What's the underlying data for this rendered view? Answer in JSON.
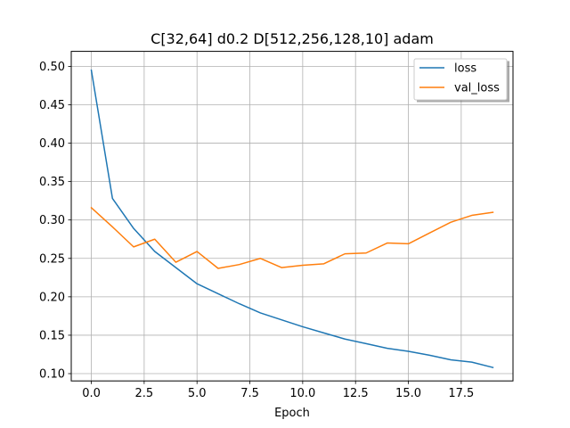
{
  "chart_data": {
    "type": "line",
    "title": "C[32,64] d0.2 D[512,256,128,10] adam",
    "xlabel": "Epoch",
    "ylabel": "",
    "xlim": [
      -0.95,
      19.95
    ],
    "ylim": [
      0.0905,
      0.5195
    ],
    "grid": true,
    "legend": "top-right",
    "x": [
      0,
      1,
      2,
      3,
      4,
      5,
      6,
      7,
      8,
      9,
      10,
      11,
      12,
      13,
      14,
      15,
      16,
      17,
      18,
      19
    ],
    "x_tick_values": [
      0,
      2.5,
      5,
      7.5,
      10,
      12.5,
      15,
      17.5
    ],
    "x_tick_labels": [
      "0.0",
      "2.5",
      "5.0",
      "7.5",
      "10.0",
      "12.5",
      "15.0",
      "17.5"
    ],
    "y_tick_values": [
      0.1,
      0.15,
      0.2,
      0.25,
      0.3,
      0.35,
      0.4,
      0.45,
      0.5
    ],
    "y_tick_labels": [
      "0.10",
      "0.15",
      "0.20",
      "0.25",
      "0.30",
      "0.35",
      "0.40",
      "0.45",
      "0.50"
    ],
    "series": [
      {
        "name": "loss",
        "color": "#1f77b4",
        "values": [
          0.495,
          0.328,
          0.289,
          0.259,
          0.238,
          0.217,
          0.204,
          0.191,
          0.179,
          0.17,
          0.161,
          0.153,
          0.145,
          0.139,
          0.133,
          0.129,
          0.124,
          0.118,
          0.115,
          0.108
        ]
      },
      {
        "name": "val_loss",
        "color": "#ff7f0e",
        "values": [
          0.316,
          0.291,
          0.265,
          0.275,
          0.245,
          0.259,
          0.237,
          0.242,
          0.25,
          0.238,
          0.241,
          0.243,
          0.256,
          0.257,
          0.27,
          0.269,
          0.283,
          0.297,
          0.306,
          0.31
        ]
      }
    ]
  }
}
